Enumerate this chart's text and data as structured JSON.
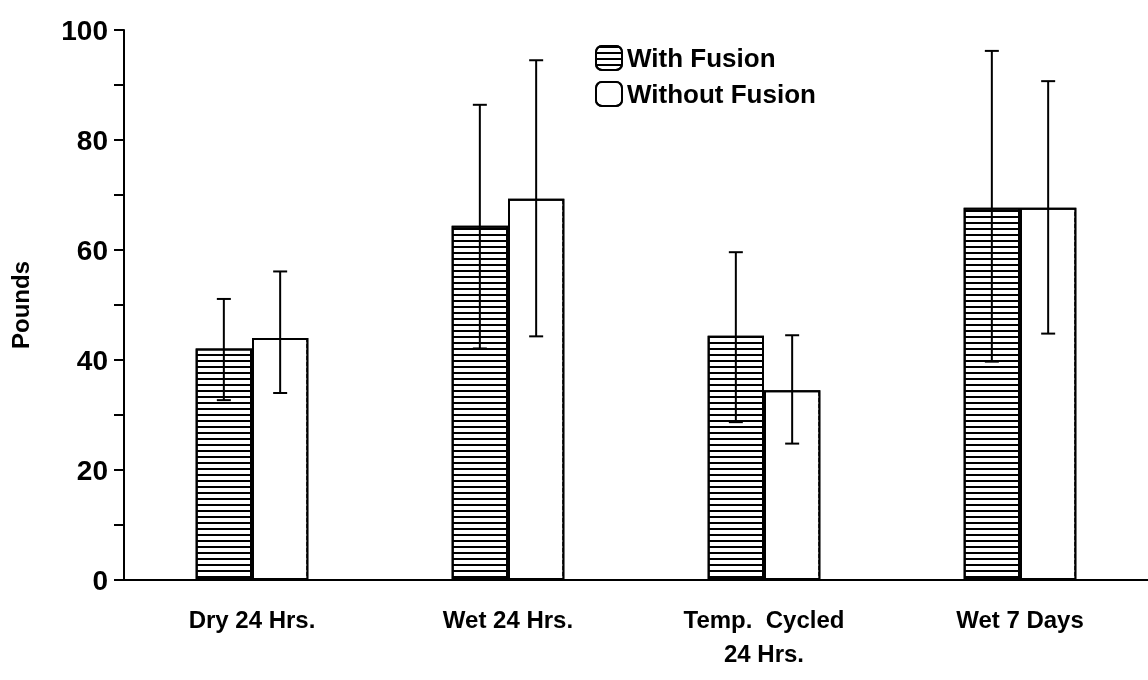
{
  "chart_data": {
    "type": "bar",
    "ylabel": "Pounds",
    "categories": [
      "Dry 24 Hrs.",
      "Wet 24 Hrs.",
      "Temp.  Cycled\n24 Hrs.",
      "Wet 7 Days"
    ],
    "series": [
      {
        "name": "With Fusion",
        "color": "#000000",
        "values": [
          42.1,
          64.4,
          44.4,
          67.7
        ],
        "errors": [
          [
            32.7,
            51.1
          ],
          [
            42.1,
            86.4
          ],
          [
            28.7,
            59.6
          ],
          [
            39.7,
            96.2
          ]
        ]
      },
      {
        "name": "Without Fusion",
        "color": "#ffffff",
        "values": [
          44.0,
          69.3,
          34.5,
          67.7
        ],
        "errors": [
          [
            34.0,
            56.1
          ],
          [
            44.3,
            94.5
          ],
          [
            24.8,
            44.5
          ],
          [
            44.8,
            90.7
          ]
        ]
      }
    ],
    "ylim": [
      0,
      100
    ],
    "yticks": [
      0,
      {
        "value": 10,
        "label": null
      },
      20,
      {
        "value": 30,
        "label": null
      },
      40,
      {
        "value": 50,
        "label": null
      },
      60,
      {
        "value": 70,
        "label": null
      },
      80,
      {
        "value": 90,
        "label": null
      },
      100
    ],
    "grid": false,
    "legend": "top right"
  }
}
